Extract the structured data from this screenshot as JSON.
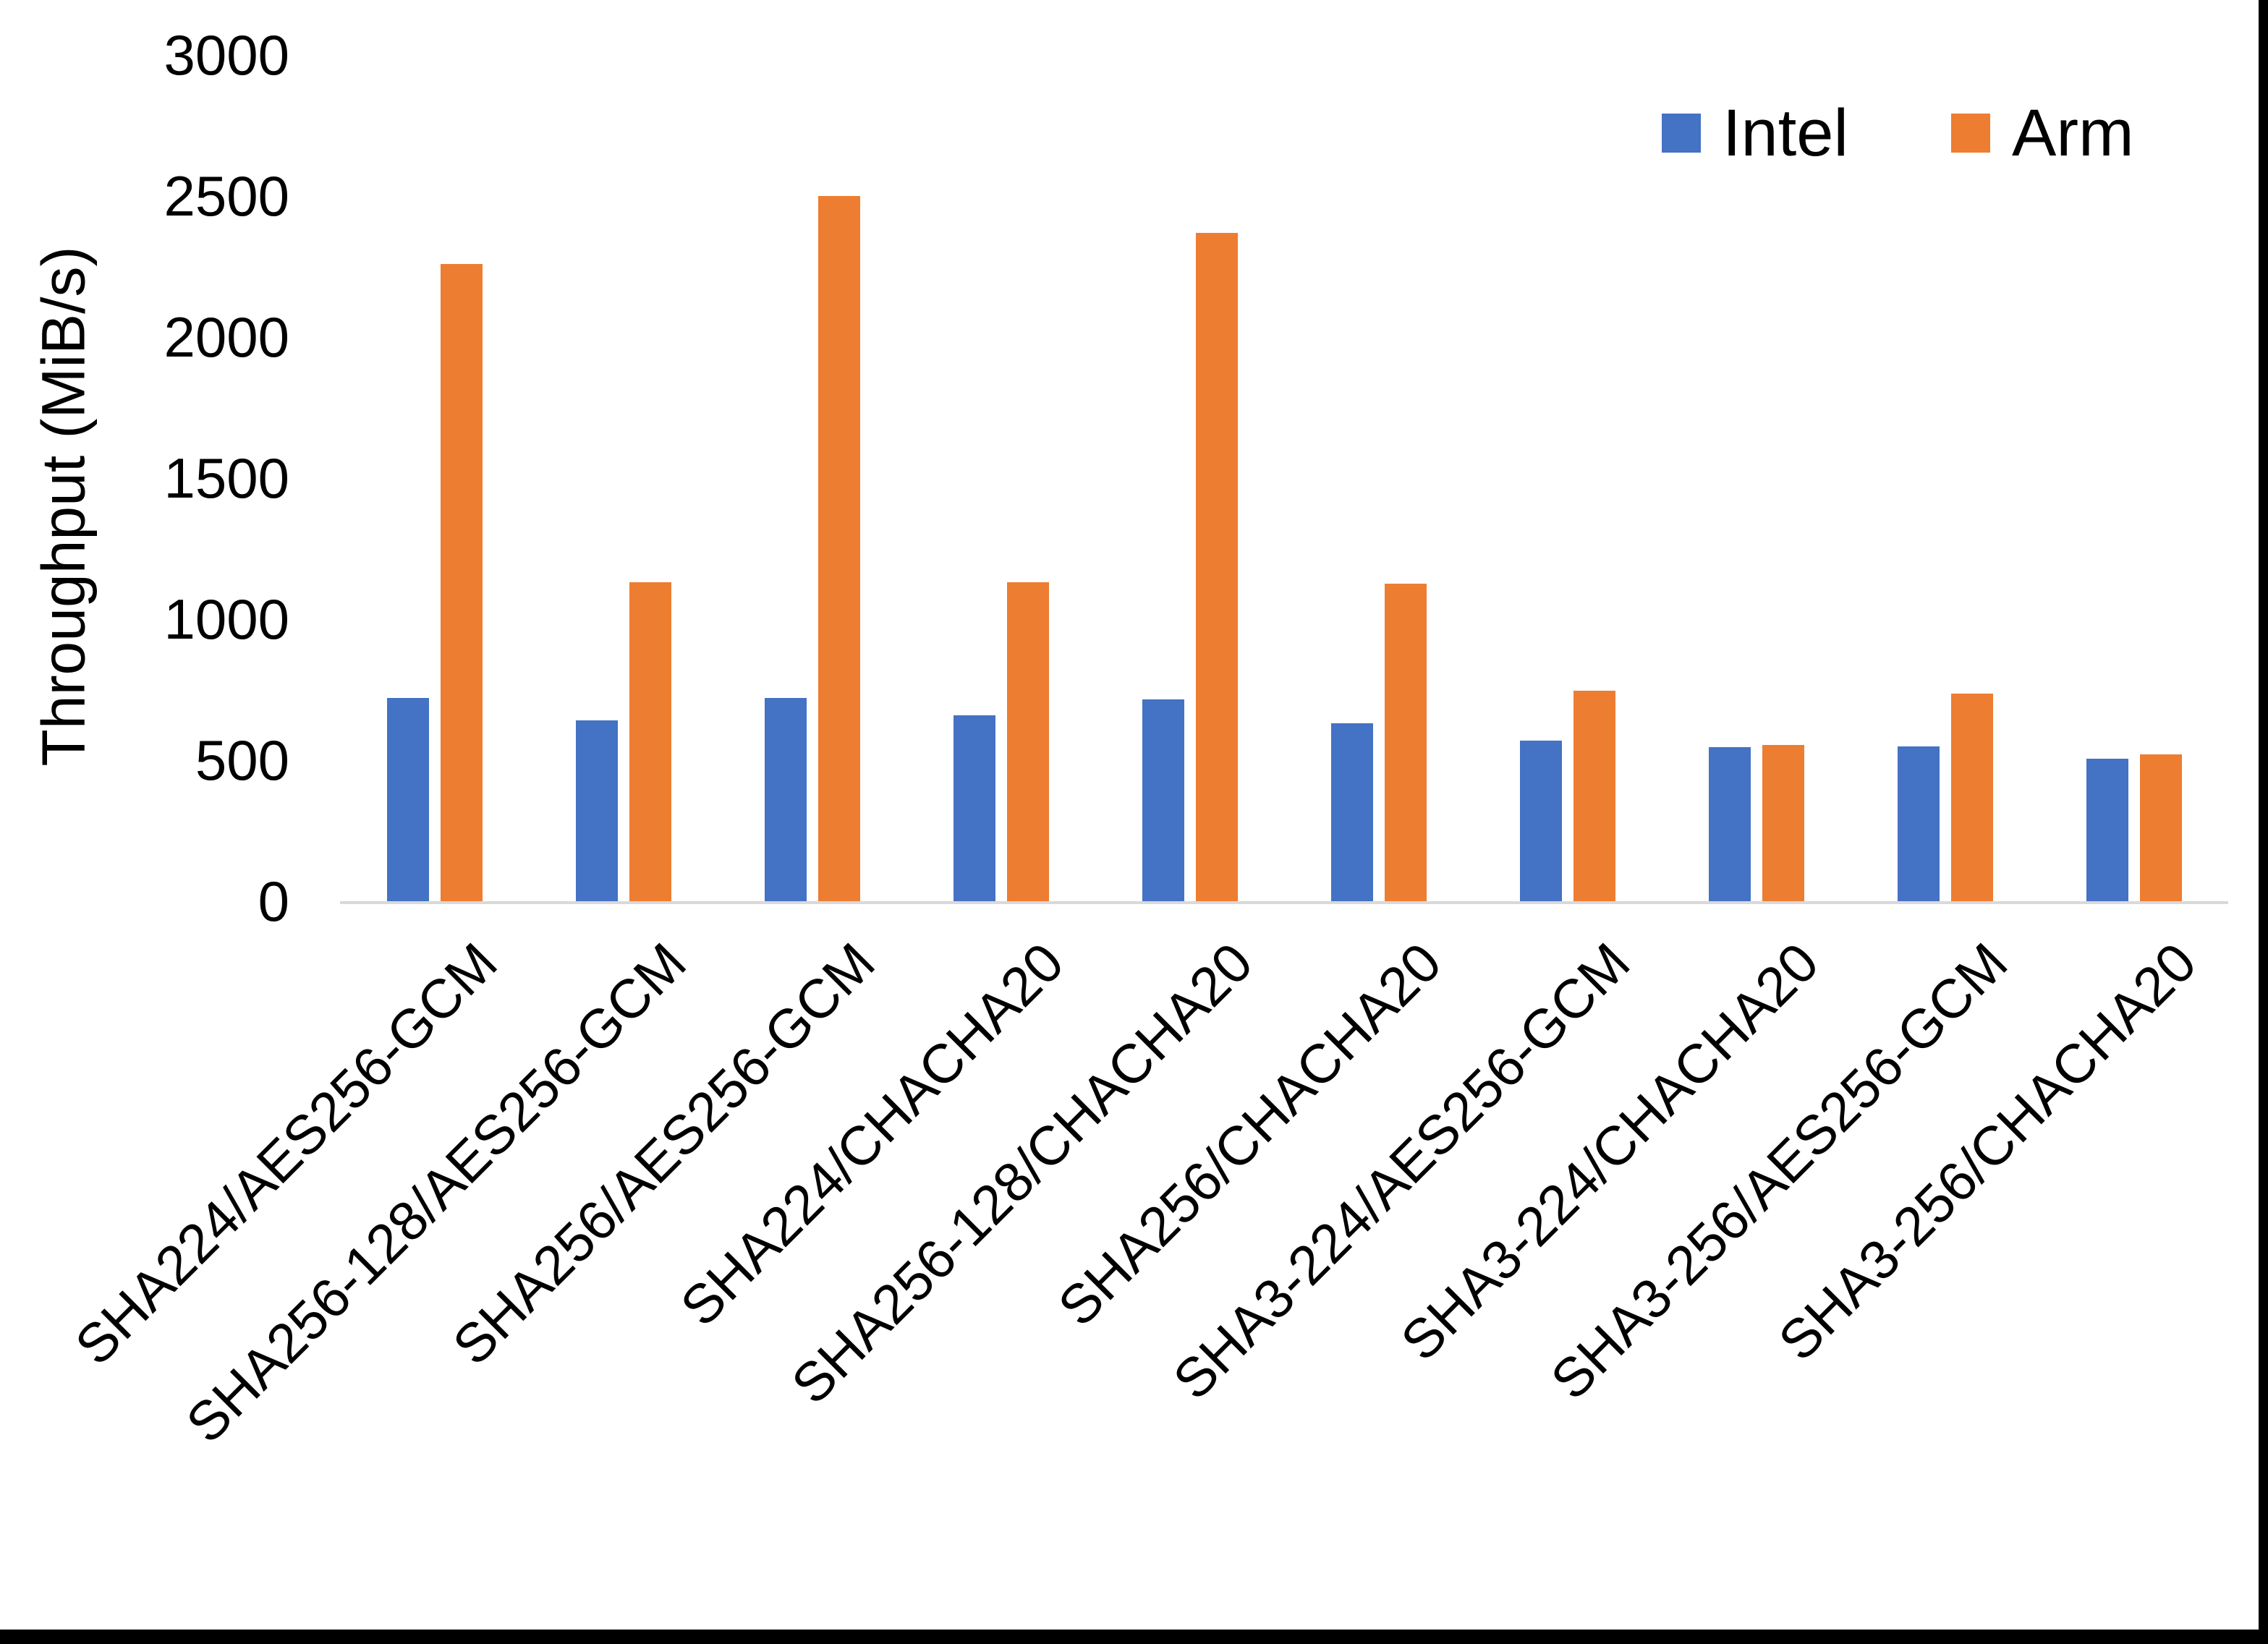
{
  "chart_data": {
    "type": "bar",
    "title": "",
    "xlabel": "",
    "ylabel": "Throughput (MiB/s)",
    "ylim": [
      0,
      3000
    ],
    "yticks": [
      0,
      500,
      1000,
      1500,
      2000,
      2500,
      3000
    ],
    "grid": false,
    "legend_position": "top-right",
    "categories": [
      "SHA224/AES256-GCM",
      "SHA256-128/AES256-GCM",
      "SHA256/AES256-GCM",
      "SHA224/CHACHA20",
      "SHA256-128/CHACHA20",
      "SHA256/CHACHA20",
      "SHA3-224/AES256-GCM",
      "SHA3-224/CHACHA20",
      "SHA3-256/AES256-GCM",
      "SHA3-256/CHACHA20"
    ],
    "series": [
      {
        "name": "Intel",
        "color": "#4472C4",
        "values": [
          720,
          640,
          720,
          660,
          715,
          630,
          570,
          545,
          550,
          505
        ]
      },
      {
        "name": "Arm",
        "color": "#ED7D31",
        "values": [
          2260,
          1130,
          2500,
          1130,
          2370,
          1125,
          745,
          555,
          735,
          520
        ]
      }
    ]
  },
  "colors": {
    "axis_line": "#D9D9D9",
    "text": "#000000",
    "frame": "#000000",
    "background": "#FFFFFF"
  }
}
